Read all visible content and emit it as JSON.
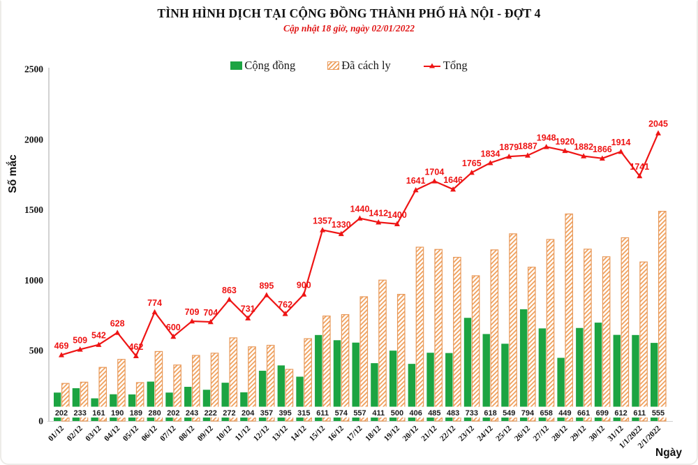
{
  "header": {
    "title": "TÌNH HÌNH DỊCH TẠI CỘNG ĐỒNG THÀNH PHỐ HÀ NỘI - ĐỢT 4",
    "subtitle": "Cập nhật 18 giờ, ngày 02/01/2022"
  },
  "legend": {
    "items": [
      {
        "label": "Cộng đồng",
        "swatch": "green-solid-square"
      },
      {
        "label": "Đã cách ly",
        "swatch": "orange-hatched-square"
      },
      {
        "label": "Tổng",
        "swatch": "red-line-triangle-marker"
      }
    ]
  },
  "colors": {
    "community_green": "#1ca442",
    "quarantine_orange": "#efa05c",
    "quarantine_border": "#e8995a",
    "total_red": "#ee1414",
    "axis_gray": "#b5b5b5",
    "text_black": "#111111",
    "subtitle_red": "#e01414"
  },
  "chart_data": {
    "type": "bar+line",
    "title": "TÌNH HÌNH DỊCH TẠI CỘNG ĐỒNG THÀNH PHỐ HÀ NỘI - ĐỢT 4",
    "subtitle": "Cập nhật 18 giờ, ngày 02/01/2022",
    "xlabel": "Ngày",
    "ylabel": "Số mắc",
    "ylim": [
      0,
      2500
    ],
    "yticks": [
      0,
      500,
      1000,
      1500,
      2000,
      2500
    ],
    "grid": false,
    "legend_position": "top",
    "categories": [
      "01/12",
      "02/12",
      "03/12",
      "04/12",
      "05/12",
      "06/12",
      "07/12",
      "08/12",
      "09/12",
      "10/12",
      "11/12",
      "12/12",
      "13/12",
      "14/12",
      "15/12",
      "16/12",
      "17/12",
      "18/12",
      "19/12",
      "20/12",
      "21/12",
      "22/12",
      "23/12",
      "24/12",
      "25/12",
      "26/12",
      "27/12",
      "28/12",
      "29/12",
      "30/12",
      "31/12",
      "1/1/2022",
      "2/1/2022"
    ],
    "series": [
      {
        "name": "Cộng đồng",
        "type": "bar",
        "style": "solid-green",
        "labels_visible": true,
        "values": [
          202,
          233,
          161,
          190,
          189,
          280,
          202,
          243,
          222,
          272,
          204,
          357,
          395,
          315,
          611,
          574,
          557,
          411,
          500,
          406,
          485,
          483,
          733,
          618,
          549,
          794,
          658,
          449,
          661,
          699,
          612,
          611,
          555
        ]
      },
      {
        "name": "Đã cách ly",
        "type": "bar",
        "style": "hatched-orange",
        "labels_visible": false,
        "values": [
          267,
          276,
          381,
          438,
          273,
          494,
          398,
          466,
          482,
          591,
          527,
          538,
          367,
          585,
          746,
          756,
          883,
          1001,
          900,
          1235,
          1219,
          1163,
          1032,
          1216,
          1330,
          1093,
          1290,
          1471,
          1221,
          1167,
          1302,
          1130,
          1490
        ]
      },
      {
        "name": "Tổng",
        "type": "line",
        "style": "red-line-triangle-markers",
        "labels_visible": true,
        "values": [
          469,
          509,
          542,
          628,
          462,
          774,
          600,
          709,
          704,
          863,
          731,
          895,
          762,
          900,
          1357,
          1330,
          1440,
          1412,
          1400,
          1641,
          1704,
          1646,
          1765,
          1834,
          1879,
          1887,
          1948,
          1920,
          1882,
          1866,
          1914,
          1741,
          2045
        ]
      }
    ]
  }
}
